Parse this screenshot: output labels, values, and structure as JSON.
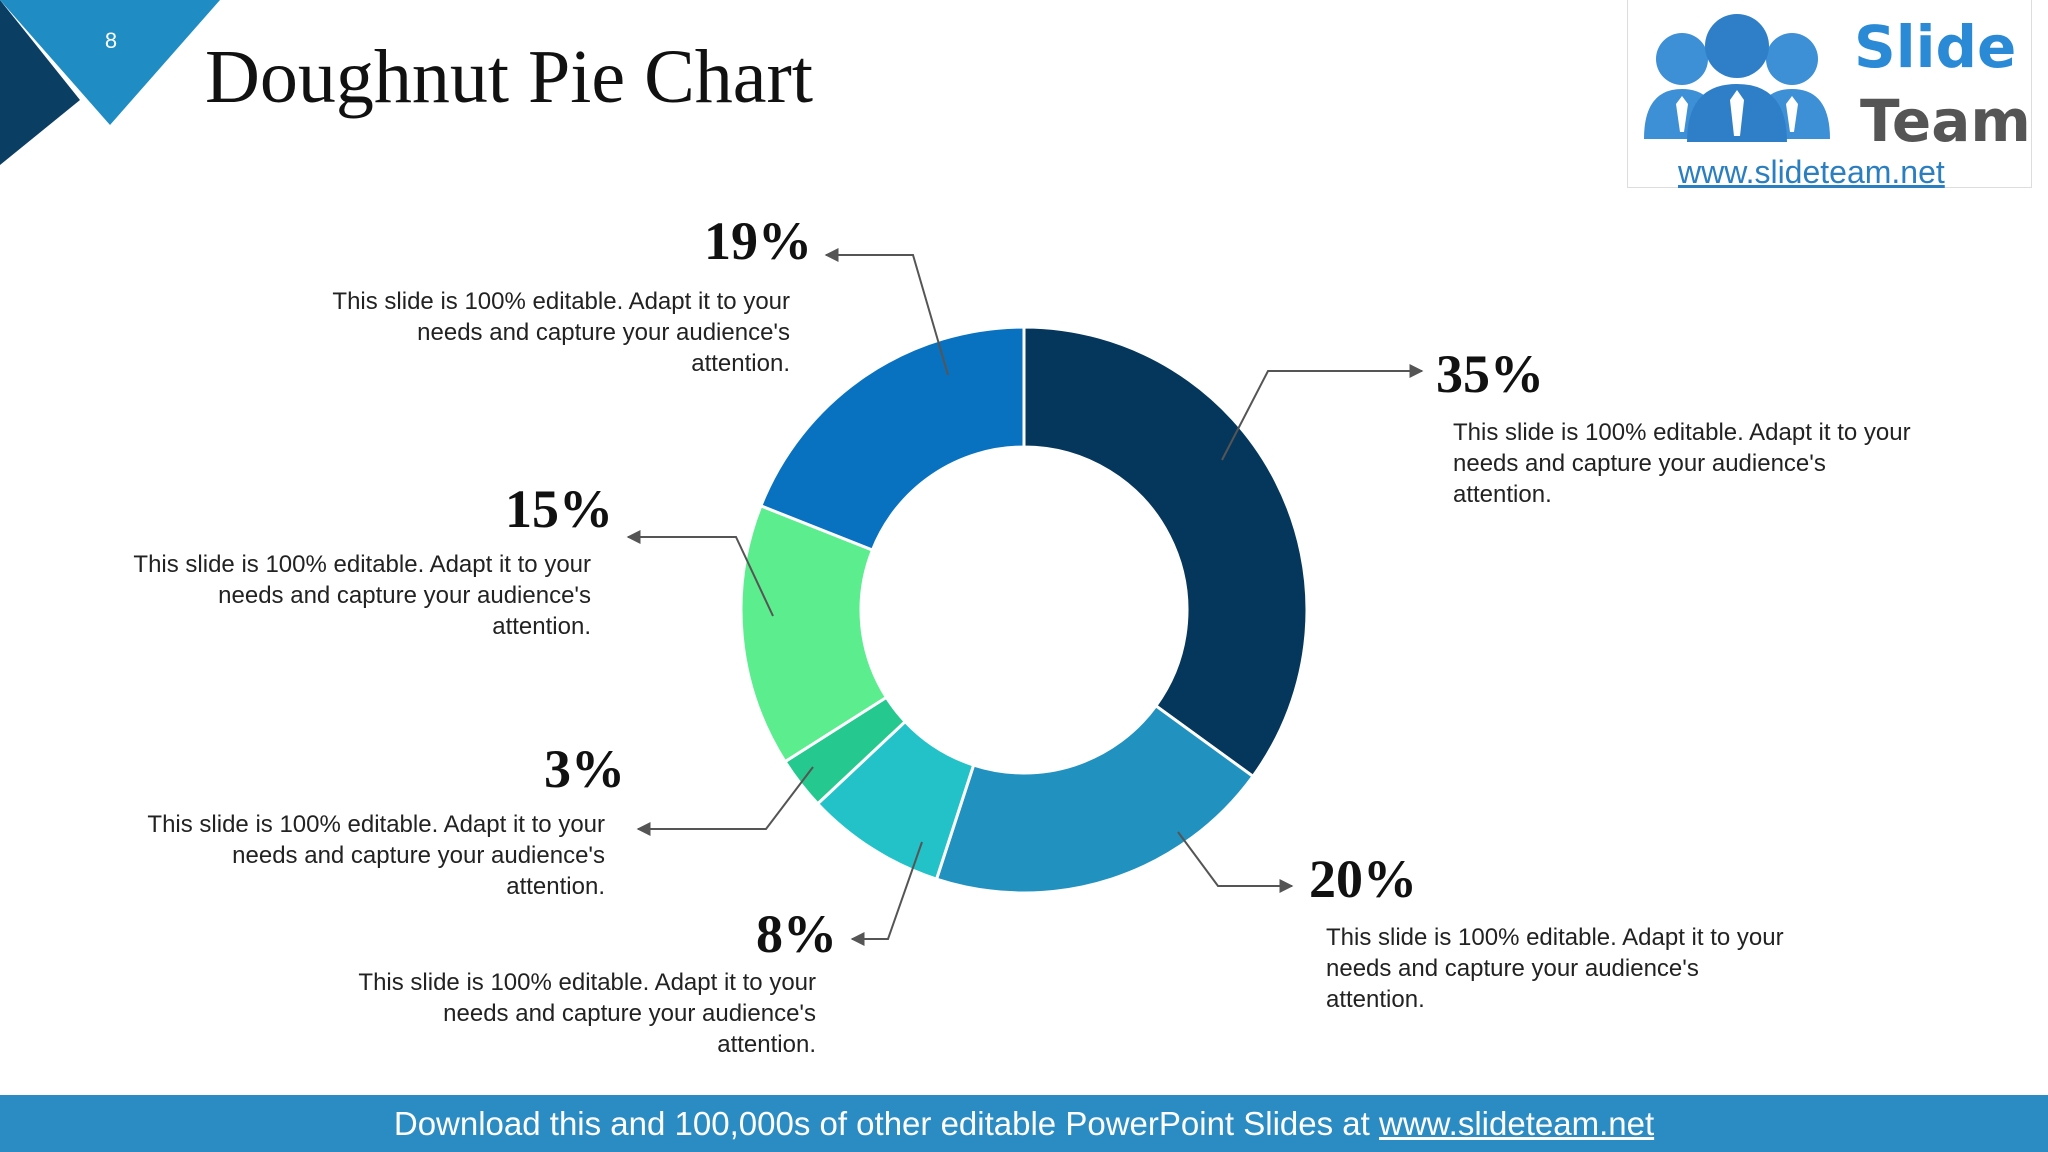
{
  "slide": {
    "number": "8",
    "title": "Doughnut Pie Chart",
    "footer_text": "Download this and 100,000s of other editable PowerPoint Slides at ",
    "footer_link": "www.slideteam.net"
  },
  "logo": {
    "word1": "Slide",
    "word2": "Team",
    "url": "www.slideteam.net"
  },
  "chart_data": {
    "type": "pie",
    "donut": true,
    "categories": [
      "35%",
      "20%",
      "8%",
      "3%",
      "15%",
      "19%"
    ],
    "values": [
      35,
      20,
      8,
      3,
      15,
      19
    ],
    "colors": [
      "#05375c",
      "#2191bf",
      "#23c2c9",
      "#25c98f",
      "#5ced8e",
      "#0872c0"
    ],
    "labels": [
      {
        "value": "35%",
        "text": "This slide is 100% editable. Adapt it to your needs and capture your audience's attention."
      },
      {
        "value": "20%",
        "text": "This slide is 100% editable. Adapt it to your needs and capture your audience's attention."
      },
      {
        "value": "8%",
        "text": "This slide is 100% editable. Adapt it to your needs and capture your audience's attention."
      },
      {
        "value": "3%",
        "text": "This slide is 100% editable. Adapt it to your needs and capture your audience's attention."
      },
      {
        "value": "15%",
        "text": "This slide is 100% editable. Adapt it to your needs and capture your audience's attention."
      },
      {
        "value": "19%",
        "text": "This slide is 100% editable. Adapt it to your needs and capture your audience's attention."
      }
    ]
  }
}
